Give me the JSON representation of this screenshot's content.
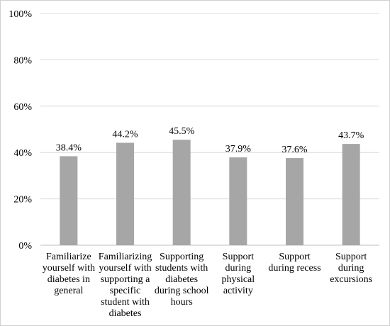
{
  "chart_data": {
    "type": "bar",
    "categories": [
      [
        "Familiarize",
        "yourself with",
        "diabetes in",
        "general"
      ],
      [
        "Familiarizing",
        "yourself with",
        "supporting a",
        "specific",
        "student with",
        "diabetes"
      ],
      [
        "Supporting",
        "students with",
        "diabetes",
        "during school",
        "hours"
      ],
      [
        "Support",
        "during",
        "physical",
        "activity"
      ],
      [
        "Support",
        "during recess"
      ],
      [
        "Support",
        "during",
        "excursions"
      ]
    ],
    "values": [
      38.4,
      44.2,
      45.5,
      37.9,
      37.6,
      43.7
    ],
    "data_labels": [
      "38.4%",
      "44.2%",
      "45.5%",
      "37.9%",
      "37.6%",
      "43.7%"
    ],
    "y_ticks": [
      "0%",
      "20%",
      "40%",
      "60%",
      "80%",
      "100%"
    ],
    "ylim": [
      0,
      100
    ],
    "grid": true,
    "bar_color": "#a6a6a6",
    "grid_color": "#d9d9d9",
    "axis_color": "#bfbfbf"
  }
}
